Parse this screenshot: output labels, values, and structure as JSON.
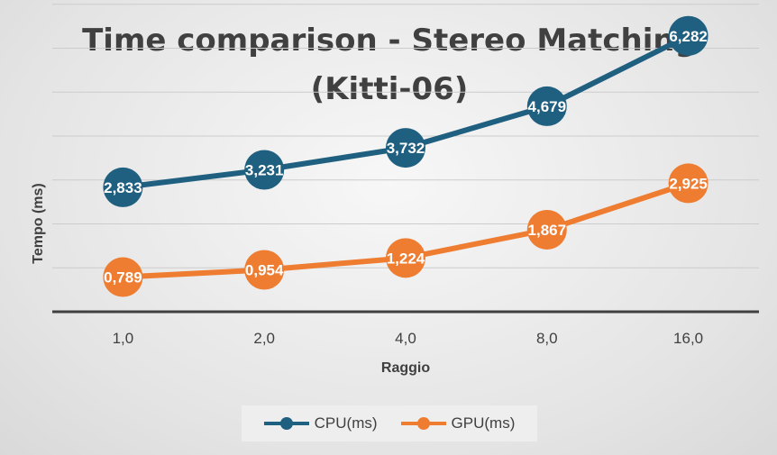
{
  "chart_data": {
    "type": "line",
    "title_lines": [
      "Time comparison - Stereo Matching",
      "(Kitti-06)"
    ],
    "xlabel": "Raggio",
    "ylabel": "Tempo (ms)",
    "categories": [
      "1,0",
      "2,0",
      "4,0",
      "8,0",
      "16,0"
    ],
    "ylim": [
      0,
      8
    ],
    "grid": true,
    "legend_position": "bottom",
    "series": [
      {
        "name": "CPU(ms)",
        "color": "#1f5f7f",
        "values": [
          2.833,
          3.231,
          3.732,
          4.679,
          6.282
        ],
        "labels": [
          "2,833",
          "3,231",
          "3,732",
          "4,679",
          "6,282"
        ]
      },
      {
        "name": "GPU(ms)",
        "color": "#ee7d31",
        "values": [
          0.789,
          0.954,
          1.224,
          1.867,
          2.925
        ],
        "labels": [
          "0,789",
          "0,954",
          "1,224",
          "1,867",
          "2,925"
        ]
      }
    ]
  }
}
